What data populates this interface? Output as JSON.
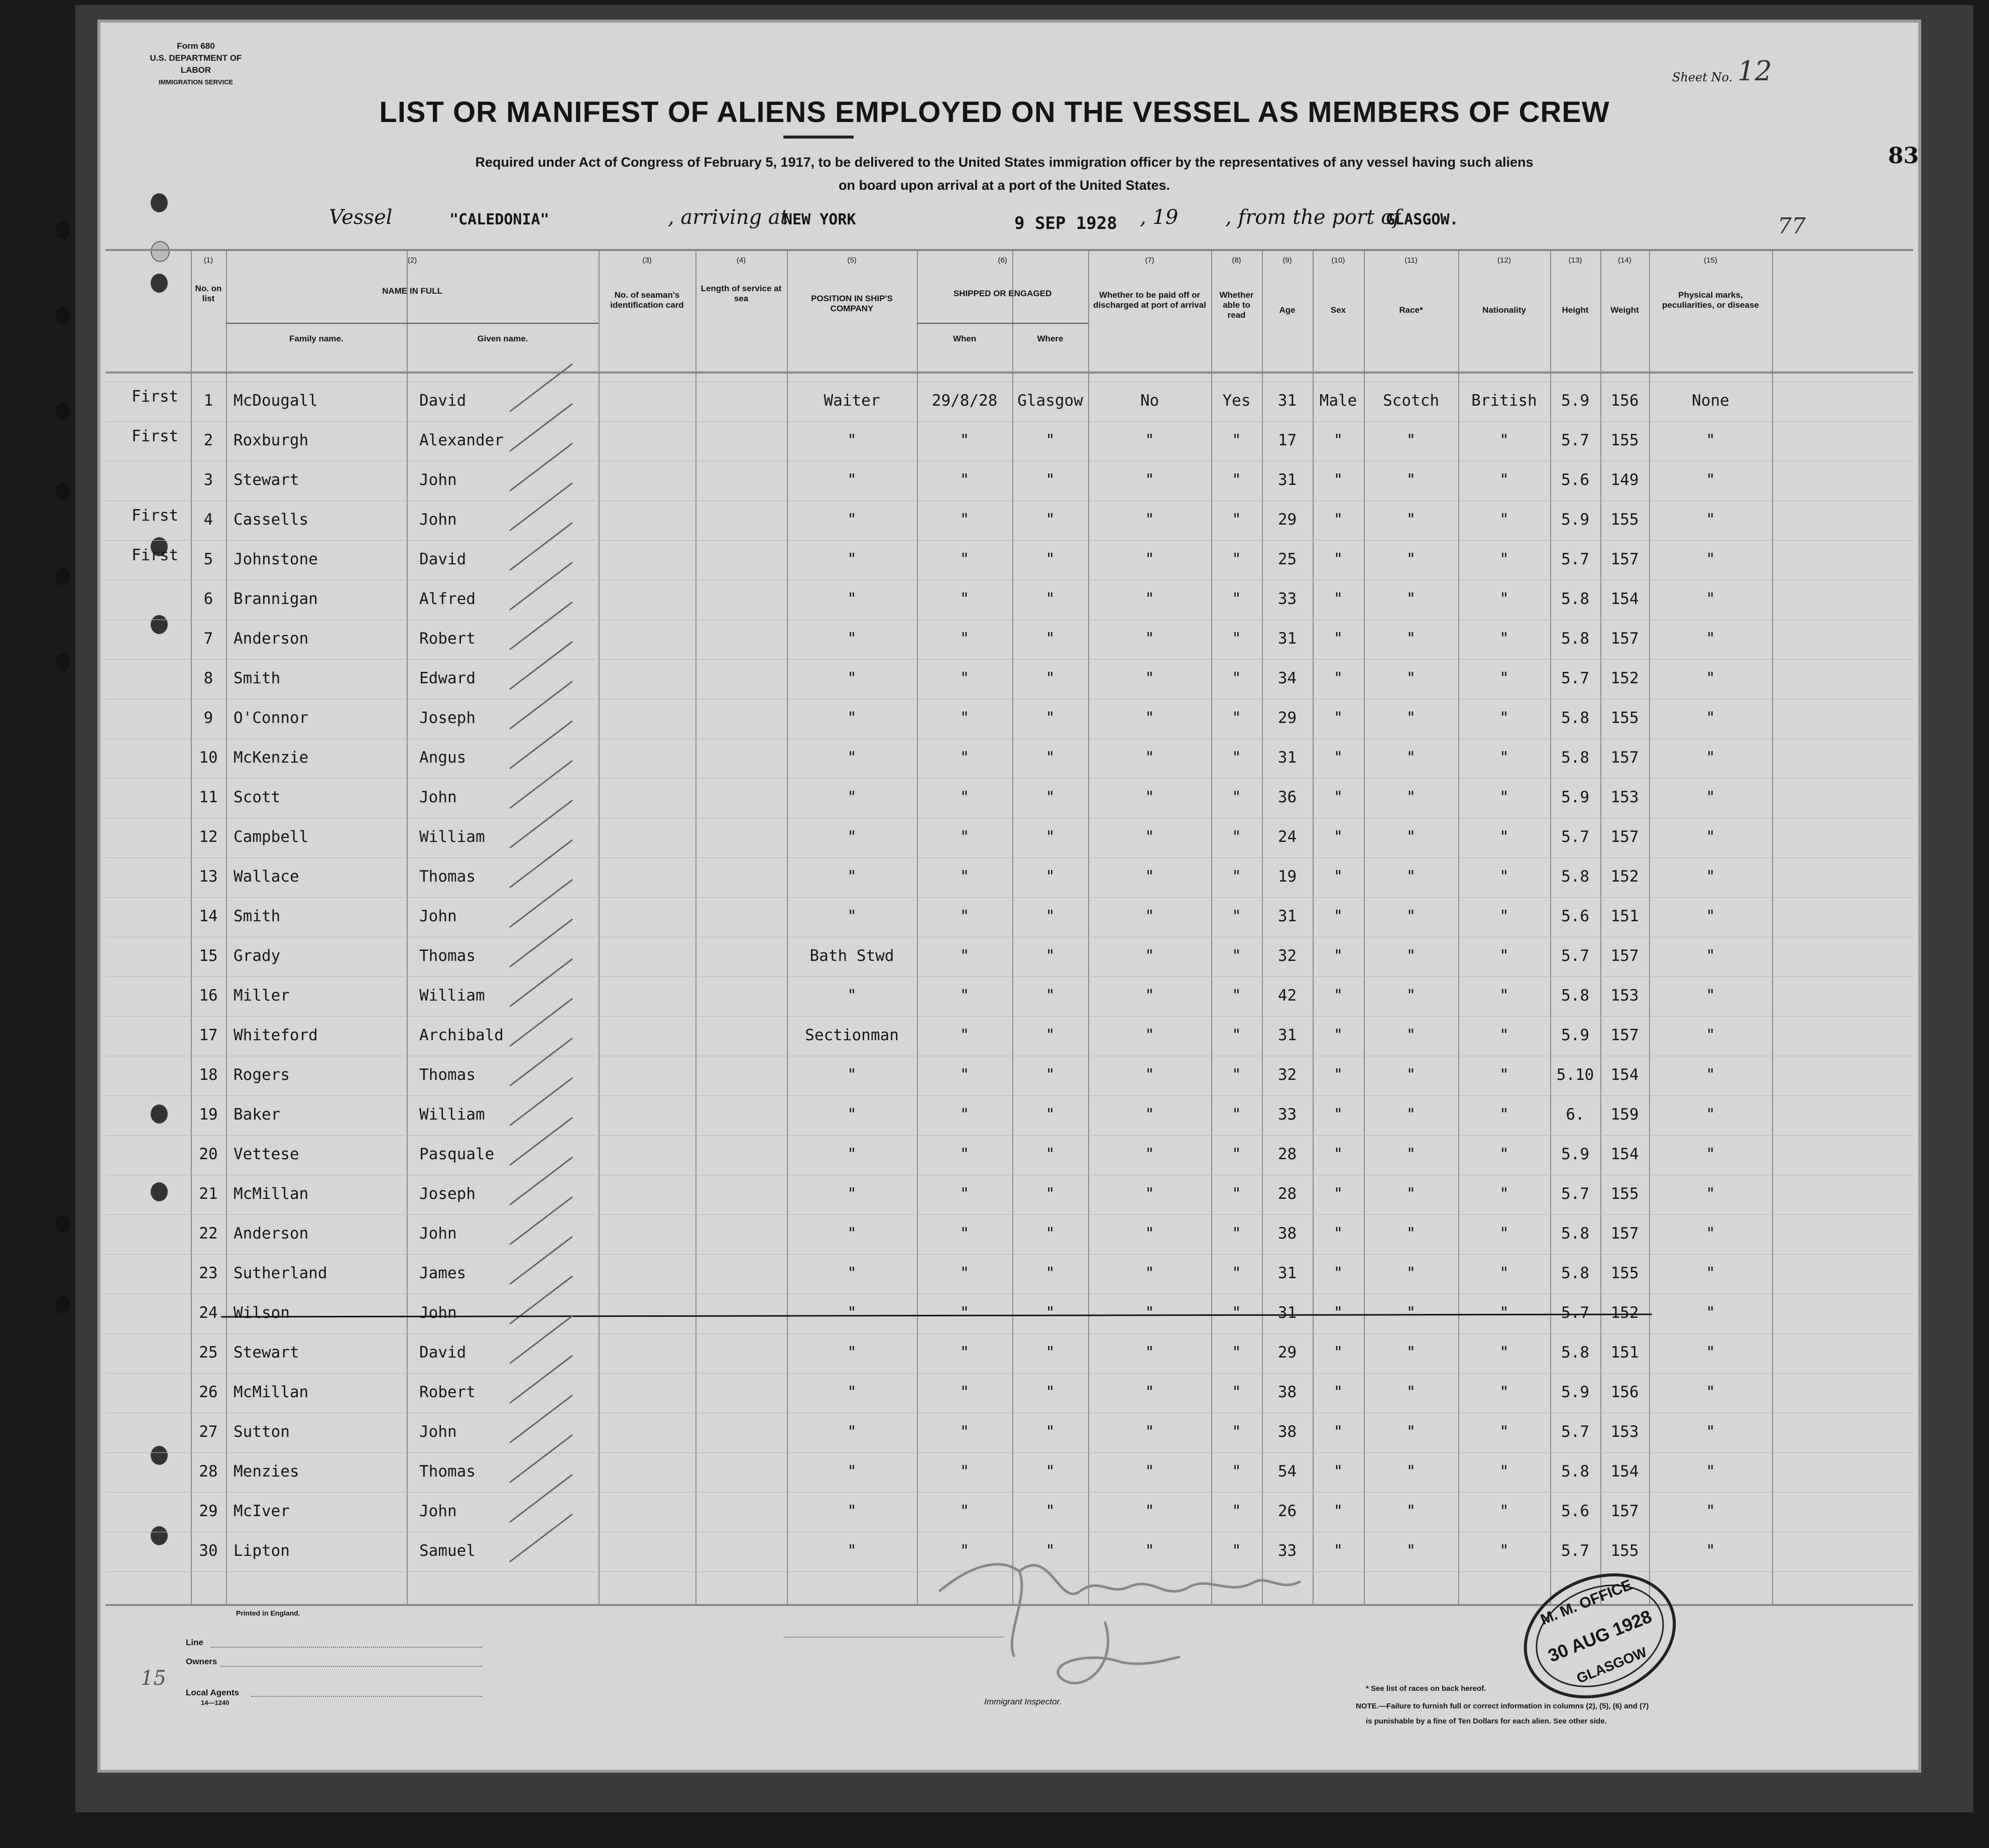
{
  "form": {
    "form_number": "Form 680",
    "department": "U.S. DEPARTMENT OF LABOR",
    "service": "IMMIGRATION SERVICE",
    "sheet_label": "Sheet No.",
    "sheet_number": "12",
    "margin_number": "83",
    "page_count": "77"
  },
  "title": "LIST OR MANIFEST OF ALIENS EMPLOYED ON THE VESSEL AS MEMBERS OF CREW",
  "subtitle_1": "Required under Act of Congress of February 5, 1917, to be delivered to the United States immigration officer by the representatives of any vessel having such aliens",
  "subtitle_2": "on board upon arrival at a port of the United States.",
  "voyage": {
    "vessel_label": "Vessel",
    "vessel": "\"CALEDONIA\"",
    "arriving_label": ", arriving at",
    "arriving_port": "NEW YORK",
    "date": "9 SEP 1928",
    "year_label": ", 19",
    "from_label": ", from the port of",
    "from_port": "GLASGOW."
  },
  "columns": {
    "n1": "(1)",
    "n2": "(2)",
    "n3": "(3)",
    "n4": "(4)",
    "n5": "(5)",
    "n6": "(6)",
    "n7": "(7)",
    "n8": "(8)",
    "n9": "(9)",
    "n10": "(10)",
    "n11": "(11)",
    "n12": "(12)",
    "n13": "(13)",
    "n14": "(14)",
    "n15": "(15)",
    "no_on_list": "No. on list",
    "name_in_full": "NAME IN FULL",
    "family_name": "Family name.",
    "given_name": "Given name.",
    "id_card": "No. of seaman's identification card",
    "length_service": "Length of service at sea",
    "position": "POSITION IN SHIP'S COMPANY",
    "shipped": "SHIPPED OR ENGAGED",
    "when": "When",
    "where": "Where",
    "paid_off": "Whether to be paid off or discharged at port of arrival",
    "able_read": "Whether able to read",
    "age": "Age",
    "sex": "Sex",
    "race": "Race*",
    "nationality": "Nationality",
    "height": "Height",
    "weight": "Weight",
    "physical": "Physical marks, peculiarities, or disease"
  },
  "rows": [
    [
      "1",
      "McDougall",
      "David",
      "Waiter",
      "29/8/28",
      "Glasgow",
      "No",
      "Yes",
      "31",
      "Male",
      "Scotch",
      "British",
      "5.9",
      "156",
      "None",
      "First"
    ],
    [
      "2",
      "Roxburgh",
      "Alexander",
      "\"",
      "\"",
      "\"",
      "\"",
      "\"",
      "17",
      "\"",
      "\"",
      "\"",
      "5.7",
      "155",
      "\"",
      "First"
    ],
    [
      "3",
      "Stewart",
      "John",
      "\"",
      "\"",
      "\"",
      "\"",
      "\"",
      "31",
      "\"",
      "\"",
      "\"",
      "5.6",
      "149",
      "\"",
      ""
    ],
    [
      "4",
      "Cassells",
      "John",
      "\"",
      "\"",
      "\"",
      "\"",
      "\"",
      "29",
      "\"",
      "\"",
      "\"",
      "5.9",
      "155",
      "\"",
      "First"
    ],
    [
      "5",
      "Johnstone",
      "David",
      "\"",
      "\"",
      "\"",
      "\"",
      "\"",
      "25",
      "\"",
      "\"",
      "\"",
      "5.7",
      "157",
      "\"",
      "First"
    ],
    [
      "6",
      "Brannigan",
      "Alfred",
      "\"",
      "\"",
      "\"",
      "\"",
      "\"",
      "33",
      "\"",
      "\"",
      "\"",
      "5.8",
      "154",
      "\"",
      ""
    ],
    [
      "7",
      "Anderson",
      "Robert",
      "\"",
      "\"",
      "\"",
      "\"",
      "\"",
      "31",
      "\"",
      "\"",
      "\"",
      "5.8",
      "157",
      "\"",
      ""
    ],
    [
      "8",
      "Smith",
      "Edward",
      "\"",
      "\"",
      "\"",
      "\"",
      "\"",
      "34",
      "\"",
      "\"",
      "\"",
      "5.7",
      "152",
      "\"",
      ""
    ],
    [
      "9",
      "O'Connor",
      "Joseph",
      "\"",
      "\"",
      "\"",
      "\"",
      "\"",
      "29",
      "\"",
      "\"",
      "\"",
      "5.8",
      "155",
      "\"",
      ""
    ],
    [
      "10",
      "McKenzie",
      "Angus",
      "\"",
      "\"",
      "\"",
      "\"",
      "\"",
      "31",
      "\"",
      "\"",
      "\"",
      "5.8",
      "157",
      "\"",
      ""
    ],
    [
      "11",
      "Scott",
      "John",
      "\"",
      "\"",
      "\"",
      "\"",
      "\"",
      "36",
      "\"",
      "\"",
      "\"",
      "5.9",
      "153",
      "\"",
      ""
    ],
    [
      "12",
      "Campbell",
      "William",
      "\"",
      "\"",
      "\"",
      "\"",
      "\"",
      "24",
      "\"",
      "\"",
      "\"",
      "5.7",
      "157",
      "\"",
      ""
    ],
    [
      "13",
      "Wallace",
      "Thomas",
      "\"",
      "\"",
      "\"",
      "\"",
      "\"",
      "19",
      "\"",
      "\"",
      "\"",
      "5.8",
      "152",
      "\"",
      ""
    ],
    [
      "14",
      "Smith",
      "John",
      "\"",
      "\"",
      "\"",
      "\"",
      "\"",
      "31",
      "\"",
      "\"",
      "\"",
      "5.6",
      "151",
      "\"",
      ""
    ],
    [
      "15",
      "Grady",
      "Thomas",
      "Bath Stwd",
      "\"",
      "\"",
      "\"",
      "\"",
      "32",
      "\"",
      "\"",
      "\"",
      "5.7",
      "157",
      "\"",
      ""
    ],
    [
      "16",
      "Miller",
      "William",
      "\"",
      "\"",
      "\"",
      "\"",
      "\"",
      "42",
      "\"",
      "\"",
      "\"",
      "5.8",
      "153",
      "\"",
      ""
    ],
    [
      "17",
      "Whiteford",
      "Archibald",
      "Sectionman",
      "\"",
      "\"",
      "\"",
      "\"",
      "31",
      "\"",
      "\"",
      "\"",
      "5.9",
      "157",
      "\"",
      ""
    ],
    [
      "18",
      "Rogers",
      "Thomas",
      "\"",
      "\"",
      "\"",
      "\"",
      "\"",
      "32",
      "\"",
      "\"",
      "\"",
      "5.10",
      "154",
      "\"",
      ""
    ],
    [
      "19",
      "Baker",
      "William",
      "\"",
      "\"",
      "\"",
      "\"",
      "\"",
      "33",
      "\"",
      "\"",
      "\"",
      "6.",
      "159",
      "\"",
      ""
    ],
    [
      "20",
      "Vettese",
      "Pasquale",
      "\"",
      "\"",
      "\"",
      "\"",
      "\"",
      "28",
      "\"",
      "\"",
      "\"",
      "5.9",
      "154",
      "\"",
      ""
    ],
    [
      "21",
      "McMillan",
      "Joseph",
      "\"",
      "\"",
      "\"",
      "\"",
      "\"",
      "28",
      "\"",
      "\"",
      "\"",
      "5.7",
      "155",
      "\"",
      ""
    ],
    [
      "22",
      "Anderson",
      "John",
      "\"",
      "\"",
      "\"",
      "\"",
      "\"",
      "38",
      "\"",
      "\"",
      "\"",
      "5.8",
      "157",
      "\"",
      ""
    ],
    [
      "23",
      "Sutherland",
      "James",
      "\"",
      "\"",
      "\"",
      "\"",
      "\"",
      "31",
      "\"",
      "\"",
      "\"",
      "5.8",
      "155",
      "\"",
      ""
    ],
    [
      "24",
      "Wilson",
      "John",
      "\"",
      "\"",
      "\"",
      "\"",
      "\"",
      "31",
      "\"",
      "\"",
      "\"",
      "5.7",
      "152",
      "\"",
      ""
    ],
    [
      "25",
      "Stewart",
      "David",
      "\"",
      "\"",
      "\"",
      "\"",
      "\"",
      "29",
      "\"",
      "\"",
      "\"",
      "5.8",
      "151",
      "\"",
      ""
    ],
    [
      "26",
      "McMillan",
      "Robert",
      "\"",
      "\"",
      "\"",
      "\"",
      "\"",
      "38",
      "\"",
      "\"",
      "\"",
      "5.9",
      "156",
      "\"",
      ""
    ],
    [
      "27",
      "Sutton",
      "John",
      "\"",
      "\"",
      "\"",
      "\"",
      "\"",
      "38",
      "\"",
      "\"",
      "\"",
      "5.7",
      "153",
      "\"",
      ""
    ],
    [
      "28",
      "Menzies",
      "Thomas",
      "\"",
      "\"",
      "\"",
      "\"",
      "\"",
      "54",
      "\"",
      "\"",
      "\"",
      "5.8",
      "154",
      "\"",
      ""
    ],
    [
      "29",
      "McIver",
      "John",
      "\"",
      "\"",
      "\"",
      "\"",
      "\"",
      "26",
      "\"",
      "\"",
      "\"",
      "5.6",
      "157",
      "\"",
      ""
    ],
    [
      "30",
      "Lipton",
      "Samuel",
      "\"",
      "\"",
      "\"",
      "\"",
      "\"",
      "33",
      "\"",
      "\"",
      "\"",
      "5.7",
      "155",
      "\"",
      ""
    ]
  ],
  "struck_row": "24",
  "footer": {
    "printed": "Printed in England.",
    "line": "Line",
    "owners": "Owners",
    "local_agents": "Local Agents",
    "print_code": "14—1240",
    "inspector": "Immigrant Inspector.",
    "race_note": "* See list of races on back hereof.",
    "note_1": "NOTE.—Failure to furnish full or correct information in columns (2), (5), (6) and (7)",
    "note_2": "is punishable by a fine of Ten Dollars for each alien.  See other side.",
    "margin_mark": "15"
  },
  "stamp": {
    "top": "M. M. OFFICE",
    "date": "30 AUG 1928",
    "bottom": "GLASGOW"
  }
}
